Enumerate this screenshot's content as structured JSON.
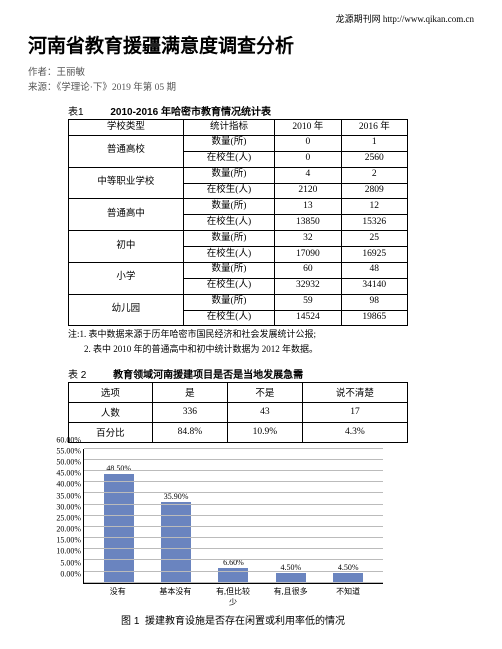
{
  "header": {
    "site_label": "龙源期刊网",
    "site_url": "http://www.qikan.com.cn"
  },
  "title": "河南省教育援疆满意度调查分析",
  "author_label": "作者：",
  "author": "王丽敏",
  "source_label": "来源：",
  "source": "《学理论·下》2019 年第 05 期",
  "table1": {
    "caption_num": "表1",
    "caption": "2010-2016 年哈密市教育情况统计表",
    "columns": [
      "学校类型",
      "统计指标",
      "2010 年",
      "2016 年"
    ],
    "groups": [
      {
        "type": "普通高校",
        "rows": [
          [
            "数量(所)",
            "0",
            "1"
          ],
          [
            "在校生(人)",
            "0",
            "2560"
          ]
        ]
      },
      {
        "type": "中等职业学校",
        "rows": [
          [
            "数量(所)",
            "4",
            "2"
          ],
          [
            "在校生(人)",
            "2120",
            "2809"
          ]
        ]
      },
      {
        "type": "普通高中",
        "rows": [
          [
            "数量(所)",
            "13",
            "12"
          ],
          [
            "在校生(人)",
            "13850",
            "15326"
          ]
        ]
      },
      {
        "type": "初中",
        "rows": [
          [
            "数量(所)",
            "32",
            "25"
          ],
          [
            "在校生(人)",
            "17090",
            "16925"
          ]
        ]
      },
      {
        "type": "小学",
        "rows": [
          [
            "数量(所)",
            "60",
            "48"
          ],
          [
            "在校生(人)",
            "32932",
            "34140"
          ]
        ]
      },
      {
        "type": "幼儿园",
        "rows": [
          [
            "数量(所)",
            "59",
            "98"
          ],
          [
            "在校生(人)",
            "14524",
            "19865"
          ]
        ]
      }
    ],
    "note1": "注:1. 表中数据来源于历年哈密市国民经济和社会发展统计公报;",
    "note2": "2. 表中 2010 年的普通高中和初中统计数据为 2012 年数据。"
  },
  "table2": {
    "caption_num": "表 2",
    "caption": "教育领域河南援建项目是否是当地发展急需",
    "columns": [
      "选项",
      "是",
      "不是",
      "说不清楚"
    ],
    "rows": [
      [
        "人数",
        "336",
        "43",
        "17"
      ],
      [
        "百分比",
        "84.8%",
        "10.9%",
        "4.3%"
      ]
    ]
  },
  "chart": {
    "type": "bar",
    "caption_num": "图 1",
    "caption": "援建教育设施是否存在闲置或利用率低的情况",
    "y_max": 60,
    "y_step": 5,
    "y_format_suffix": ".00%",
    "bar_color": "#6a84bf",
    "grid_color": "#bbbbbb",
    "categories": [
      "没有",
      "基本没有",
      "有,但比较少",
      "有,且很多",
      "不知道"
    ],
    "values": [
      48.5,
      35.9,
      6.6,
      4.5,
      4.5
    ],
    "value_labels": [
      "48.50%",
      "35.90%",
      "6.60%",
      "4.50%",
      "4.50%"
    ]
  }
}
